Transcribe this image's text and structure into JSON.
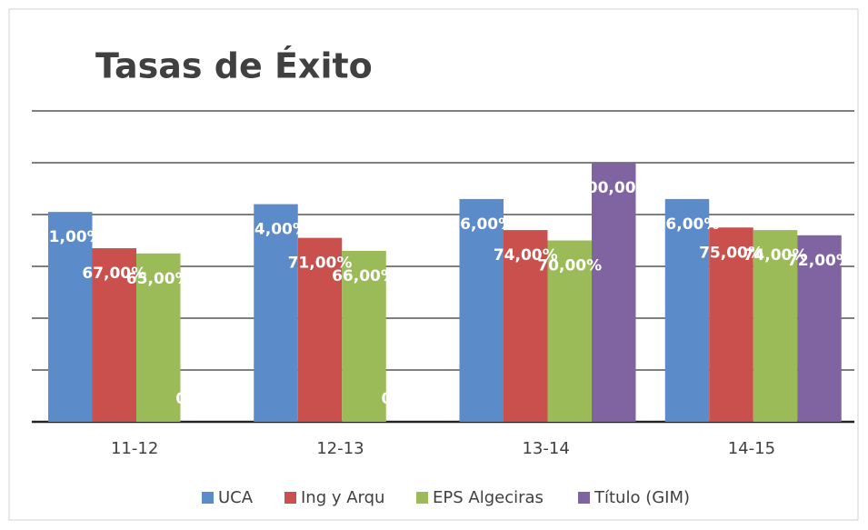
{
  "chart_data": {
    "type": "bar",
    "title": "Tasas de Éxito",
    "categories": [
      "11-12",
      "12-13",
      "13-14",
      "14-15"
    ],
    "series": [
      {
        "name": "UCA",
        "color": "#5b8bc8",
        "values": [
          81,
          84,
          86,
          86
        ],
        "value_labels": [
          "81,00%",
          "84,00%",
          "86,00%",
          "86,00%"
        ]
      },
      {
        "name": "Ing y Arqu",
        "color": "#c9504d",
        "values": [
          67,
          71,
          74,
          75
        ],
        "value_labels": [
          "67,00%",
          "71,00%",
          "74,00%",
          "75,00%"
        ]
      },
      {
        "name": "EPS Algeciras",
        "color": "#9bbb59",
        "values": [
          65,
          66,
          70,
          74
        ],
        "value_labels": [
          "65,00%",
          "66,00%",
          "70,00%",
          "74,00%"
        ]
      },
      {
        "name": "Título (GIM)",
        "color": "#8064a2",
        "values": [
          0,
          0,
          100,
          72
        ],
        "value_labels": [
          "0,00%",
          "0,00%",
          "100,00%",
          "72,00%"
        ]
      }
    ],
    "ylim": [
      0,
      120
    ],
    "yticks": [
      0,
      20,
      40,
      60,
      80,
      100,
      120
    ],
    "grid": true,
    "legend": "bottom"
  }
}
